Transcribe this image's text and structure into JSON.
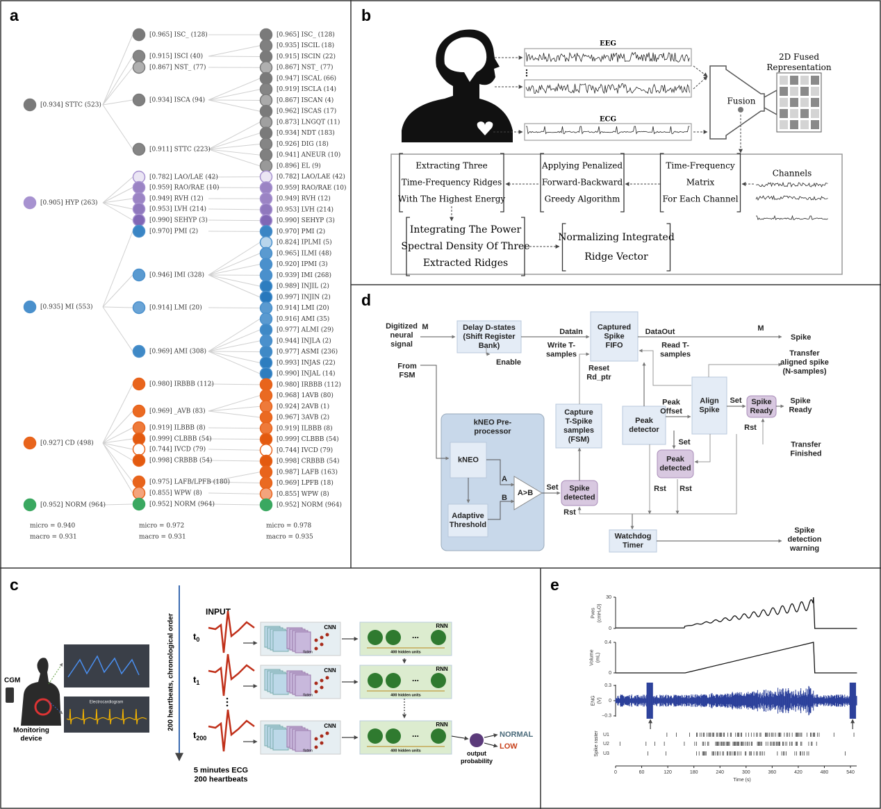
{
  "a": {
    "label": "a",
    "level1": [
      {
        "text": "[0.934] STTC (523)",
        "color": "#7a7a7a"
      },
      {
        "text": "[0.905] HYP (263)",
        "color": "#a792d0"
      },
      {
        "text": "[0.935] MI (553)",
        "color": "#4a90cc"
      },
      {
        "text": "[0.927] CD (498)",
        "color": "#e8641c"
      },
      {
        "text": "[0.952] NORM (964)",
        "color": "#3aa860"
      }
    ],
    "level2": [
      {
        "text": "[0.965] ISC_ (128)",
        "color": "#7a7a7a"
      },
      {
        "text": "[0.915] ISCI (40)",
        "color": "#858585"
      },
      {
        "text": "[0.867] NST_ (77)",
        "color": "#b0b0b0"
      },
      {
        "text": "[0.934] ISCA (94)",
        "color": "#808080"
      },
      {
        "text": "[0.911] STTC (223)",
        "color": "#858585"
      },
      {
        "text": "[0.782] LAO/LAE (42)",
        "color": "#ebe6f4"
      },
      {
        "text": "[0.959] RAO/RAE (10)",
        "color": "#9b84c4"
      },
      {
        "text": "[0.949] RVH (12)",
        "color": "#9b84c4"
      },
      {
        "text": "[0.953] LVH (214)",
        "color": "#8f78bd"
      },
      {
        "text": "[0.990] SEHYP (3)",
        "color": "#8067b5"
      },
      {
        "text": "[0.970] PMI (2)",
        "color": "#3a85c4"
      },
      {
        "text": "[0.946] IMI (328)",
        "color": "#5a9ad0"
      },
      {
        "text": "[0.914] LMI (20)",
        "color": "#6aa4d6"
      },
      {
        "text": "[0.969] AMI (308)",
        "color": "#3f89c6"
      },
      {
        "text": "[0.980] IRBBB (112)",
        "color": "#e8641c"
      },
      {
        "text": "[0.969] _AVB (83)",
        "color": "#ea6a22"
      },
      {
        "text": "[0.919] ILBBB (8)",
        "color": "#ee7a3a"
      },
      {
        "text": "[0.999] CLBBB (54)",
        "color": "#e35a10"
      },
      {
        "text": "[0.744] IVCD (79)",
        "color": "#ffffff"
      },
      {
        "text": "[0.998] CRBBB (54)",
        "color": "#e35a10"
      },
      {
        "text": "[0.975] LAFB/LPFB (180)",
        "color": "#e8641c"
      },
      {
        "text": "[0.855] WPW (8)",
        "color": "#f4a47c"
      },
      {
        "text": "[0.952] NORM (964)",
        "color": "#3aa860"
      }
    ],
    "level3": [
      {
        "text": "[0.965] ISC_ (128)",
        "color": "#7a7a7a"
      },
      {
        "text": "[0.935] ISCIL (18)",
        "color": "#808080"
      },
      {
        "text": "[0.915] ISCIN (22)",
        "color": "#7a7a7a"
      },
      {
        "text": "[0.867] NST_ (77)",
        "color": "#b0b0b0"
      },
      {
        "text": "[0.947] ISCAL (66)",
        "color": "#7a7a7a"
      },
      {
        "text": "[0.919] ISCLA (14)",
        "color": "#858585"
      },
      {
        "text": "[0.867] ISCAN (4)",
        "color": "#aaaaaa"
      },
      {
        "text": "[0.962] ISCAS (17)",
        "color": "#7a7a7a"
      },
      {
        "text": "[0.873] LNGQT (11)",
        "color": "#a0a0a0"
      },
      {
        "text": "[0.934] NDT (183)",
        "color": "#7a7a7a"
      },
      {
        "text": "[0.926] DIG (18)",
        "color": "#858585"
      },
      {
        "text": "[0.941] ANEUR (10)",
        "color": "#808080"
      },
      {
        "text": "[0.896] EL (9)",
        "color": "#999999"
      },
      {
        "text": "[0.782] LAO/LAE (42)",
        "color": "#ebe6f4"
      },
      {
        "text": "[0.959] RAO/RAE (10)",
        "color": "#9b84c4"
      },
      {
        "text": "[0.949] RVH (12)",
        "color": "#9b84c4"
      },
      {
        "text": "[0.953] LVH (214)",
        "color": "#8f78bd"
      },
      {
        "text": "[0.990] SEHYP (3)",
        "color": "#8067b5"
      },
      {
        "text": "[0.970] PMI (2)",
        "color": "#3a85c4"
      },
      {
        "text": "[0.824] IPLMI (5)",
        "color": "#b8d5ec"
      },
      {
        "text": "[0.965] ILMI (48)",
        "color": "#5a9ad0"
      },
      {
        "text": "[0.920] IPMI (3)",
        "color": "#4a90cc"
      },
      {
        "text": "[0.939] IMI (268)",
        "color": "#4a90cc"
      },
      {
        "text": "[0.989] INJIL (2)",
        "color": "#2d7dbf"
      },
      {
        "text": "[0.997] INJIN (2)",
        "color": "#2878bc"
      },
      {
        "text": "[0.914] LMI (20)",
        "color": "#5a9ad0"
      },
      {
        "text": "[0.916] AMI (35)",
        "color": "#5a9ad0"
      },
      {
        "text": "[0.977] ALMI (29)",
        "color": "#3f89c6"
      },
      {
        "text": "[0.944] INJLA (2)",
        "color": "#4a90cc"
      },
      {
        "text": "[0.977] ASMI (236)",
        "color": "#3f89c6"
      },
      {
        "text": "[0.993] INJAS (22)",
        "color": "#2d7dbf"
      },
      {
        "text": "[0.990] INJAL (14)",
        "color": "#2d7dbf"
      },
      {
        "text": "[0.980] IRBBB (112)",
        "color": "#e8641c"
      },
      {
        "text": "[0.968] 1AVB (80)",
        "color": "#ea6a22"
      },
      {
        "text": "[0.924] 2AVB (1)",
        "color": "#ee7a3a"
      },
      {
        "text": "[0.967] 3AVB (2)",
        "color": "#ea6a22"
      },
      {
        "text": "[0.919] ILBBB (8)",
        "color": "#ee7a3a"
      },
      {
        "text": "[0.999] CLBBB (54)",
        "color": "#e35a10"
      },
      {
        "text": "[0.744] IVCD (79)",
        "color": "#ffffff"
      },
      {
        "text": "[0.998] CRBBB (54)",
        "color": "#e35a10"
      },
      {
        "text": "[0.987] LAFB (163)",
        "color": "#e8641c"
      },
      {
        "text": "[0.969] LPFB (18)",
        "color": "#ea6a22"
      },
      {
        "text": "[0.855] WPW (8)",
        "color": "#f4a47c"
      },
      {
        "text": "[0.952] NORM (964)",
        "color": "#3aa860"
      }
    ],
    "scores": [
      {
        "micro": "micro = 0.940",
        "macro": "macro = 0.931"
      },
      {
        "micro": "micro = 0.972",
        "macro": "macro = 0.931"
      },
      {
        "micro": "micro = 0.978",
        "macro": "macro = 0.935"
      }
    ]
  },
  "b": {
    "label": "b",
    "eeg": "EEG",
    "ecg": "ECG",
    "fusion": "Fusion",
    "fused": [
      "2D Fused",
      "Representation"
    ],
    "channels": "Channels",
    "steps": [
      [
        "Extracting Three",
        "Time-Frequency Ridges",
        "With The Highest Energy"
      ],
      [
        "Applying Penalized",
        "Forward-Backward",
        "Greedy Algorithm"
      ],
      [
        "Time-Frequency",
        "Matrix",
        "For Each Channel"
      ],
      [
        "Integrating The Power",
        "Spectral Density Of Three",
        "Extracted Ridges"
      ],
      [
        "Normalizing Integrated",
        "Ridge Vector"
      ]
    ]
  },
  "c": {
    "label": "c",
    "cgm": "CGM",
    "device": [
      "Monitoring",
      "device"
    ],
    "screen": "Electrocardiogram",
    "axis": "200 heartbeats, chronological order",
    "input": "INPUT",
    "times": [
      {
        "base": "t",
        "sub": "0"
      },
      {
        "base": "t",
        "sub": "1"
      },
      {
        "base": "t",
        "sub": "200"
      }
    ],
    "cnn": [
      "CNN",
      "CNN",
      "CNN"
    ],
    "flatten": [
      "flatten",
      "flatten",
      "flatten"
    ],
    "rnn": [
      "RNN",
      "RNN",
      "RNN"
    ],
    "rnn_dots": [
      "...",
      "...",
      "..."
    ],
    "hidden": [
      "400 hidden units",
      "400 hidden units",
      "400 hidden units"
    ],
    "ecg": [
      "5 minutes ECG",
      "200 heartbeats"
    ],
    "output": [
      "output",
      "probability"
    ],
    "normal": "NORMAL",
    "low": "LOW"
  },
  "d": {
    "label": "d",
    "preprocessor": [
      "kNEO Pre-",
      "processor"
    ],
    "comparator": "A>B",
    "boxes": [
      [
        "Delay D-states",
        "(Shift Register",
        "Bank)"
      ],
      [
        "Captured",
        "Spike",
        "FIFO"
      ],
      [
        "Capture",
        "T-Spike",
        "samples",
        "(FSM)"
      ],
      [
        "Peak",
        "detector"
      ],
      [
        "Align",
        "Spike"
      ],
      [
        "Spike",
        "Ready"
      ],
      [
        "Peak",
        "detected"
      ],
      [
        "Spike",
        "detected"
      ],
      [
        "kNEO"
      ],
      [
        "Adaptive",
        "Threshold"
      ],
      [
        "Watchdog",
        "Timer"
      ]
    ],
    "labels": [
      [
        "Digitized",
        "neural",
        "signal"
      ],
      [
        "M"
      ],
      [
        "From",
        "FSM"
      ],
      [
        "DataIn"
      ],
      [
        "DataOut"
      ],
      [
        "M"
      ],
      [
        "Spike"
      ],
      [
        "Enable"
      ],
      [
        "Write T-",
        "samples"
      ],
      [
        "Read T-",
        "samples"
      ],
      [
        "Reset",
        "Rd_ptr"
      ],
      [
        "Transfer",
        "aligned spike",
        "(N-samples)"
      ],
      [
        "Peak",
        "Offset"
      ],
      [
        "Set"
      ],
      [
        "Spike",
        "Ready"
      ],
      [
        "Rst"
      ],
      [
        "Transfer",
        "Finished"
      ],
      [
        "Set"
      ],
      [
        "Rst"
      ],
      [
        "Rst"
      ],
      [
        "A"
      ],
      [
        "B"
      ],
      [
        "Set"
      ],
      [
        "Rst"
      ],
      [
        "Spike",
        "detection",
        "warning"
      ]
    ]
  },
  "e": {
    "label": "e",
    "pves": [
      "Pves",
      "(cmH₂O)"
    ],
    "volume": [
      "Volume",
      "(mL)"
    ],
    "eng": [
      "ENG",
      "(V)"
    ],
    "raster": "Spike raster",
    "units": [
      "U1",
      "U2",
      "U3"
    ],
    "pves_ticks": [
      30,
      0
    ],
    "volume_ticks": [
      0.4,
      0
    ],
    "eng_ticks": [
      0.3,
      0,
      {
        "value": -0.3,
        "label": "−0.3"
      }
    ],
    "time_ticks": [
      0,
      60,
      120,
      180,
      240,
      300,
      360,
      420,
      480,
      540
    ],
    "time_label": "Time (s)"
  }
}
